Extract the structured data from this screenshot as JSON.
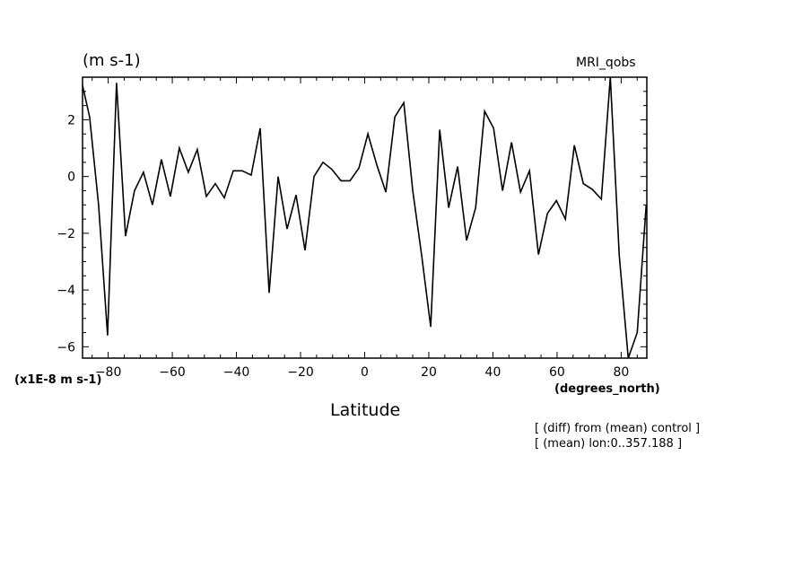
{
  "chart_data": {
    "type": "line",
    "title_units": "(m s-1)",
    "model_label": "MRI_qobs",
    "multiplier_label": "(x1E-8 m s-1)",
    "xlabel": "Latitude",
    "xunits": "(degrees_north)",
    "notes": [
      "[ (diff) from (mean) control ]",
      "[ (mean) lon:0..357.188 ]"
    ],
    "xlim": [
      -88,
      88
    ],
    "ylim": [
      -6.4,
      3.5
    ],
    "xticks": [
      -80,
      -60,
      -40,
      -20,
      0,
      20,
      40,
      60,
      80
    ],
    "yticks": [
      2,
      0,
      -2,
      -4,
      -6
    ],
    "x": [
      -88.6,
      -85.8,
      -83.0,
      -80.2,
      -77.4,
      -74.6,
      -71.8,
      -69.0,
      -66.2,
      -63.4,
      -60.6,
      -57.8,
      -55.0,
      -52.2,
      -49.4,
      -46.6,
      -43.8,
      -41.0,
      -38.2,
      -35.4,
      -32.6,
      -29.8,
      -27.0,
      -24.2,
      -21.4,
      -18.6,
      -15.8,
      -13.0,
      -10.2,
      -7.4,
      -4.6,
      -1.8,
      1.0,
      3.8,
      6.6,
      9.4,
      12.2,
      15.0,
      17.8,
      20.6,
      23.4,
      26.2,
      29.0,
      31.8,
      34.6,
      37.4,
      40.2,
      43.0,
      45.8,
      48.6,
      51.4,
      54.2,
      57.0,
      59.8,
      62.6,
      65.4,
      68.2,
      71.0,
      73.8,
      76.6,
      79.4,
      82.2,
      85.0,
      87.8
    ],
    "y": [
      3.5,
      2.1,
      -1.0,
      -5.6,
      3.3,
      -2.1,
      -0.5,
      0.15,
      -1.0,
      0.6,
      -0.7,
      1.0,
      0.15,
      0.95,
      -0.7,
      -0.25,
      -0.75,
      0.2,
      0.2,
      0.05,
      1.7,
      -4.1,
      0.0,
      -1.85,
      -0.65,
      -2.6,
      0.0,
      0.5,
      0.25,
      -0.15,
      -0.15,
      0.3,
      1.5,
      0.4,
      -0.55,
      2.1,
      2.6,
      -0.5,
      -2.8,
      -5.3,
      1.65,
      -1.1,
      0.35,
      -2.25,
      -1.1,
      2.3,
      1.7,
      -0.5,
      1.2,
      -0.55,
      0.2,
      -2.75,
      -1.3,
      -0.85,
      -1.5,
      1.1,
      -0.25,
      -0.45,
      -0.8,
      3.5,
      -2.8,
      -6.4,
      -5.5,
      -1.0
    ]
  }
}
